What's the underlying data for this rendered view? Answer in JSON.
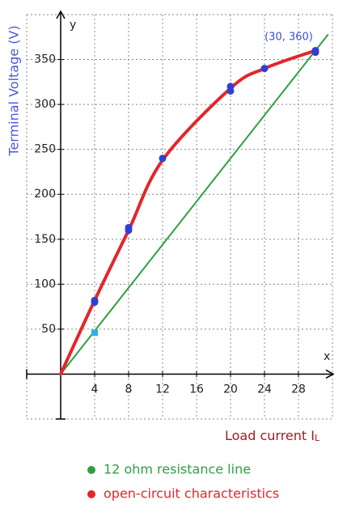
{
  "chart_data": {
    "type": "line",
    "x_axis_name": "x",
    "y_axis_name": "y",
    "x_label": "Load current I",
    "x_label_subscript": "L",
    "y_label": "Terminal Voltage (V)",
    "annotation": "(30, 360)",
    "xlim": [
      -4,
      32
    ],
    "ylim": [
      -50,
      400
    ],
    "xticks": [
      4,
      8,
      12,
      16,
      20,
      24,
      28
    ],
    "yticks": [
      50,
      100,
      150,
      200,
      250,
      300,
      350
    ],
    "grid": true,
    "series": [
      {
        "name": "12 ohm resistance line",
        "color": "#2ea043",
        "style": "line",
        "x": [
          0,
          31.5
        ],
        "values": [
          0,
          378
        ]
      },
      {
        "name": "open-circuit characteristics",
        "color": "#e3262b",
        "style": "curve",
        "x": [
          0,
          4,
          8,
          12,
          20,
          24,
          30
        ],
        "values": [
          0,
          82,
          160,
          238,
          318,
          340,
          360
        ]
      },
      {
        "color": "#2f3fd6",
        "style": "points",
        "x": [
          4,
          4,
          8,
          8,
          12,
          20,
          20,
          24,
          30,
          30
        ],
        "values": [
          82,
          80,
          160,
          163,
          240,
          320,
          315,
          340,
          360,
          358
        ]
      },
      {
        "color": "#2ab0e8",
        "style": "square",
        "x": [
          4
        ],
        "values": [
          46
        ]
      }
    ]
  }
}
